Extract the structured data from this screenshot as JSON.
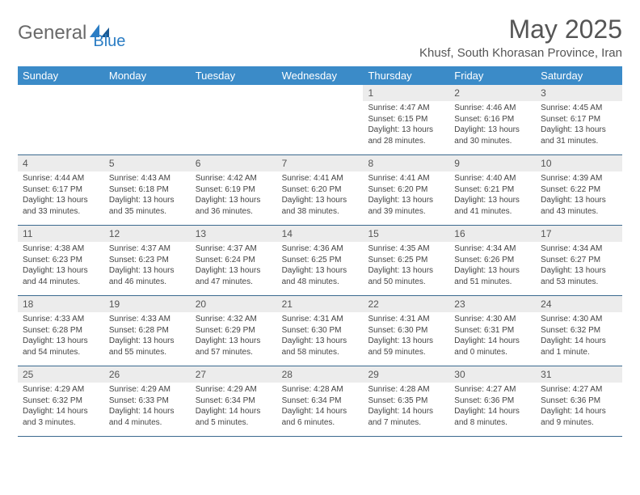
{
  "branding": {
    "logo_part1": "General",
    "logo_part2": "Blue",
    "logo_color_gray": "#6a6a6a",
    "logo_color_blue": "#2b7dc4"
  },
  "title": "May 2025",
  "location": "Khusf, South Khorasan Province, Iran",
  "colors": {
    "header_bg": "#3b8bc8",
    "header_text": "#ffffff",
    "daynum_bg": "#ececec",
    "row_border": "#3b6a8f",
    "body_text": "#444444"
  },
  "day_labels": [
    "Sunday",
    "Monday",
    "Tuesday",
    "Wednesday",
    "Thursday",
    "Friday",
    "Saturday"
  ],
  "weeks": [
    [
      {
        "n": "",
        "sr": "",
        "ss": "",
        "dl": ""
      },
      {
        "n": "",
        "sr": "",
        "ss": "",
        "dl": ""
      },
      {
        "n": "",
        "sr": "",
        "ss": "",
        "dl": ""
      },
      {
        "n": "",
        "sr": "",
        "ss": "",
        "dl": ""
      },
      {
        "n": "1",
        "sr": "Sunrise: 4:47 AM",
        "ss": "Sunset: 6:15 PM",
        "dl": "Daylight: 13 hours and 28 minutes."
      },
      {
        "n": "2",
        "sr": "Sunrise: 4:46 AM",
        "ss": "Sunset: 6:16 PM",
        "dl": "Daylight: 13 hours and 30 minutes."
      },
      {
        "n": "3",
        "sr": "Sunrise: 4:45 AM",
        "ss": "Sunset: 6:17 PM",
        "dl": "Daylight: 13 hours and 31 minutes."
      }
    ],
    [
      {
        "n": "4",
        "sr": "Sunrise: 4:44 AM",
        "ss": "Sunset: 6:17 PM",
        "dl": "Daylight: 13 hours and 33 minutes."
      },
      {
        "n": "5",
        "sr": "Sunrise: 4:43 AM",
        "ss": "Sunset: 6:18 PM",
        "dl": "Daylight: 13 hours and 35 minutes."
      },
      {
        "n": "6",
        "sr": "Sunrise: 4:42 AM",
        "ss": "Sunset: 6:19 PM",
        "dl": "Daylight: 13 hours and 36 minutes."
      },
      {
        "n": "7",
        "sr": "Sunrise: 4:41 AM",
        "ss": "Sunset: 6:20 PM",
        "dl": "Daylight: 13 hours and 38 minutes."
      },
      {
        "n": "8",
        "sr": "Sunrise: 4:41 AM",
        "ss": "Sunset: 6:20 PM",
        "dl": "Daylight: 13 hours and 39 minutes."
      },
      {
        "n": "9",
        "sr": "Sunrise: 4:40 AM",
        "ss": "Sunset: 6:21 PM",
        "dl": "Daylight: 13 hours and 41 minutes."
      },
      {
        "n": "10",
        "sr": "Sunrise: 4:39 AM",
        "ss": "Sunset: 6:22 PM",
        "dl": "Daylight: 13 hours and 43 minutes."
      }
    ],
    [
      {
        "n": "11",
        "sr": "Sunrise: 4:38 AM",
        "ss": "Sunset: 6:23 PM",
        "dl": "Daylight: 13 hours and 44 minutes."
      },
      {
        "n": "12",
        "sr": "Sunrise: 4:37 AM",
        "ss": "Sunset: 6:23 PM",
        "dl": "Daylight: 13 hours and 46 minutes."
      },
      {
        "n": "13",
        "sr": "Sunrise: 4:37 AM",
        "ss": "Sunset: 6:24 PM",
        "dl": "Daylight: 13 hours and 47 minutes."
      },
      {
        "n": "14",
        "sr": "Sunrise: 4:36 AM",
        "ss": "Sunset: 6:25 PM",
        "dl": "Daylight: 13 hours and 48 minutes."
      },
      {
        "n": "15",
        "sr": "Sunrise: 4:35 AM",
        "ss": "Sunset: 6:25 PM",
        "dl": "Daylight: 13 hours and 50 minutes."
      },
      {
        "n": "16",
        "sr": "Sunrise: 4:34 AM",
        "ss": "Sunset: 6:26 PM",
        "dl": "Daylight: 13 hours and 51 minutes."
      },
      {
        "n": "17",
        "sr": "Sunrise: 4:34 AM",
        "ss": "Sunset: 6:27 PM",
        "dl": "Daylight: 13 hours and 53 minutes."
      }
    ],
    [
      {
        "n": "18",
        "sr": "Sunrise: 4:33 AM",
        "ss": "Sunset: 6:28 PM",
        "dl": "Daylight: 13 hours and 54 minutes."
      },
      {
        "n": "19",
        "sr": "Sunrise: 4:33 AM",
        "ss": "Sunset: 6:28 PM",
        "dl": "Daylight: 13 hours and 55 minutes."
      },
      {
        "n": "20",
        "sr": "Sunrise: 4:32 AM",
        "ss": "Sunset: 6:29 PM",
        "dl": "Daylight: 13 hours and 57 minutes."
      },
      {
        "n": "21",
        "sr": "Sunrise: 4:31 AM",
        "ss": "Sunset: 6:30 PM",
        "dl": "Daylight: 13 hours and 58 minutes."
      },
      {
        "n": "22",
        "sr": "Sunrise: 4:31 AM",
        "ss": "Sunset: 6:30 PM",
        "dl": "Daylight: 13 hours and 59 minutes."
      },
      {
        "n": "23",
        "sr": "Sunrise: 4:30 AM",
        "ss": "Sunset: 6:31 PM",
        "dl": "Daylight: 14 hours and 0 minutes."
      },
      {
        "n": "24",
        "sr": "Sunrise: 4:30 AM",
        "ss": "Sunset: 6:32 PM",
        "dl": "Daylight: 14 hours and 1 minute."
      }
    ],
    [
      {
        "n": "25",
        "sr": "Sunrise: 4:29 AM",
        "ss": "Sunset: 6:32 PM",
        "dl": "Daylight: 14 hours and 3 minutes."
      },
      {
        "n": "26",
        "sr": "Sunrise: 4:29 AM",
        "ss": "Sunset: 6:33 PM",
        "dl": "Daylight: 14 hours and 4 minutes."
      },
      {
        "n": "27",
        "sr": "Sunrise: 4:29 AM",
        "ss": "Sunset: 6:34 PM",
        "dl": "Daylight: 14 hours and 5 minutes."
      },
      {
        "n": "28",
        "sr": "Sunrise: 4:28 AM",
        "ss": "Sunset: 6:34 PM",
        "dl": "Daylight: 14 hours and 6 minutes."
      },
      {
        "n": "29",
        "sr": "Sunrise: 4:28 AM",
        "ss": "Sunset: 6:35 PM",
        "dl": "Daylight: 14 hours and 7 minutes."
      },
      {
        "n": "30",
        "sr": "Sunrise: 4:27 AM",
        "ss": "Sunset: 6:36 PM",
        "dl": "Daylight: 14 hours and 8 minutes."
      },
      {
        "n": "31",
        "sr": "Sunrise: 4:27 AM",
        "ss": "Sunset: 6:36 PM",
        "dl": "Daylight: 14 hours and 9 minutes."
      }
    ]
  ]
}
